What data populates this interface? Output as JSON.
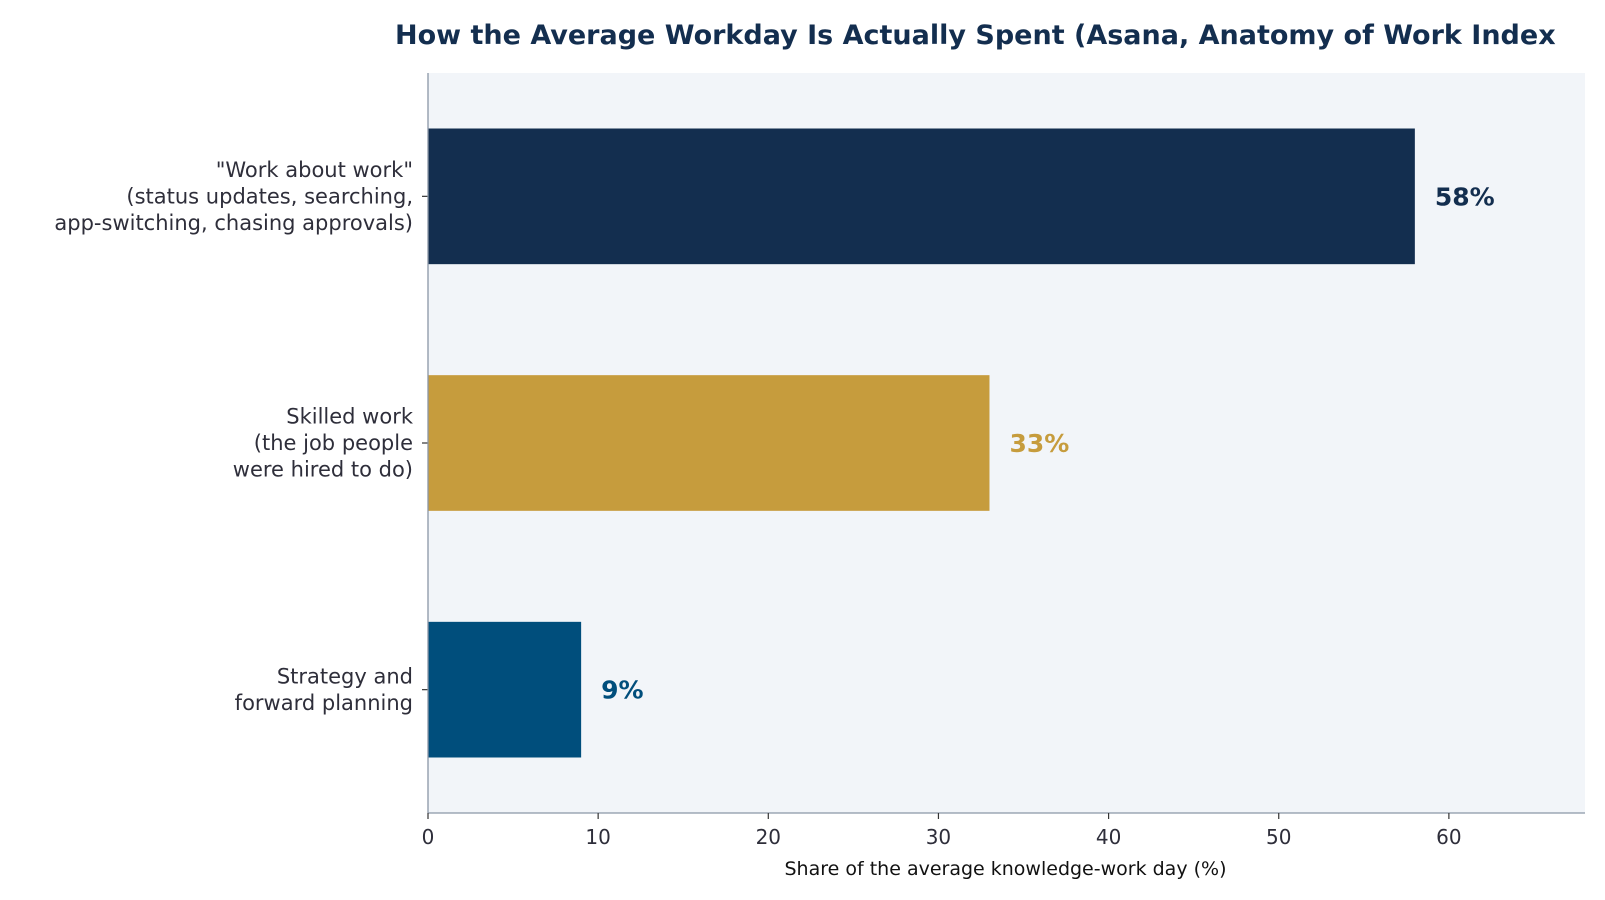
{
  "chart_data": {
    "type": "bar",
    "orientation": "horizontal",
    "title": "How the Average Workday Is Actually Spent (Asana, Anatomy of Work Index",
    "xlabel": "Share of the average knowledge-work day (%)",
    "ylabel": "",
    "xlim": [
      0,
      68
    ],
    "xticks": [
      0,
      10,
      20,
      30,
      40,
      50,
      60
    ],
    "categories": [
      [
        "\"Work about work\"",
        "(status updates, searching,",
        "app-switching, chasing approvals)"
      ],
      [
        "Skilled work",
        "(the job people",
        "were hired to do)"
      ],
      [
        "Strategy and",
        "forward planning"
      ]
    ],
    "values": [
      58,
      33,
      9
    ],
    "value_labels": [
      "58%",
      "33%",
      "9%"
    ],
    "bar_colors": [
      "#132e4f",
      "#c69c3d",
      "#004e7c"
    ],
    "grid": false,
    "legend": "none"
  },
  "colors": {
    "title": "#132e4f",
    "plot_background": "#f2f5f9",
    "axis": "#8a96a6",
    "tick_text": "#2e2e3a"
  }
}
